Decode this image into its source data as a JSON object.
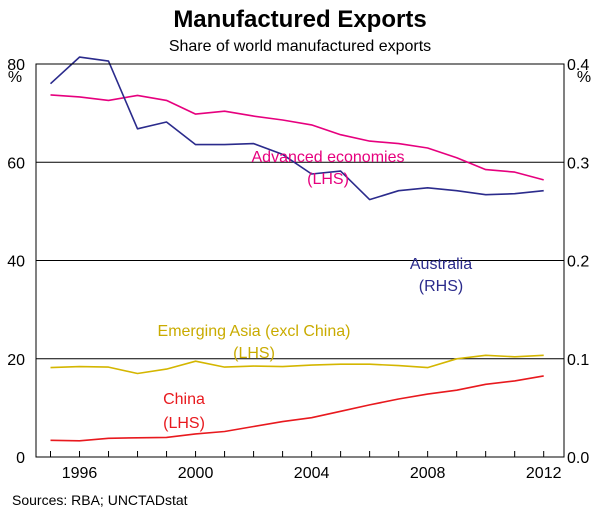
{
  "chart_data": {
    "type": "line",
    "title": "Manufactured Exports",
    "subtitle": "Share of world manufactured exports",
    "source": "Sources: RBA; UNCTADstat",
    "x": [
      1995,
      1996,
      1997,
      1998,
      1999,
      2000,
      2001,
      2002,
      2003,
      2004,
      2005,
      2006,
      2007,
      2008,
      2009,
      2010,
      2011,
      2012
    ],
    "xlim": [
      1994.5,
      2012.7
    ],
    "x_ticks": [
      1996,
      2000,
      2004,
      2008,
      2012
    ],
    "y_left": {
      "unit": "%",
      "lim": [
        0,
        80
      ],
      "ticks": [
        0,
        20,
        40,
        60,
        80
      ]
    },
    "y_right": {
      "unit": "%",
      "lim": [
        0,
        0.4
      ],
      "ticks": [
        "0.0",
        "0.1",
        "0.2",
        "0.3",
        "0.4"
      ]
    },
    "grid": "horizontal",
    "series": [
      {
        "name": "Advanced economies",
        "axis_label": "(LHS)",
        "axis": "left",
        "color": "#e6007e",
        "values": [
          73.7,
          73.3,
          72.6,
          73.6,
          72.6,
          69.8,
          70.4,
          69.4,
          68.6,
          67.6,
          65.6,
          64.3,
          63.8,
          62.9,
          60.9,
          58.5,
          58.0,
          56.4
        ]
      },
      {
        "name": "Australia",
        "axis_label": "(RHS)",
        "axis": "right",
        "color": "#2b2b8c",
        "values": [
          0.38,
          0.407,
          0.403,
          0.334,
          0.341,
          0.318,
          0.318,
          0.319,
          0.308,
          0.288,
          0.291,
          0.262,
          0.271,
          0.274,
          0.271,
          0.267,
          0.268,
          0.271
        ]
      },
      {
        "name": "Emerging Asia (excl China)",
        "axis_label": "(LHS)",
        "axis": "left",
        "color": "#d4b600",
        "values": [
          18.2,
          18.4,
          18.3,
          17.0,
          17.9,
          19.5,
          18.3,
          18.5,
          18.4,
          18.7,
          18.9,
          18.9,
          18.6,
          18.2,
          20.0,
          20.7,
          20.4,
          20.7
        ]
      },
      {
        "name": "China",
        "axis_label": "(LHS)",
        "axis": "left",
        "color": "#e8191e",
        "values": [
          3.4,
          3.3,
          3.8,
          3.9,
          4.0,
          4.7,
          5.2,
          6.2,
          7.2,
          8.0,
          9.3,
          10.6,
          11.8,
          12.8,
          13.6,
          14.8,
          15.5,
          16.5
        ]
      }
    ]
  }
}
